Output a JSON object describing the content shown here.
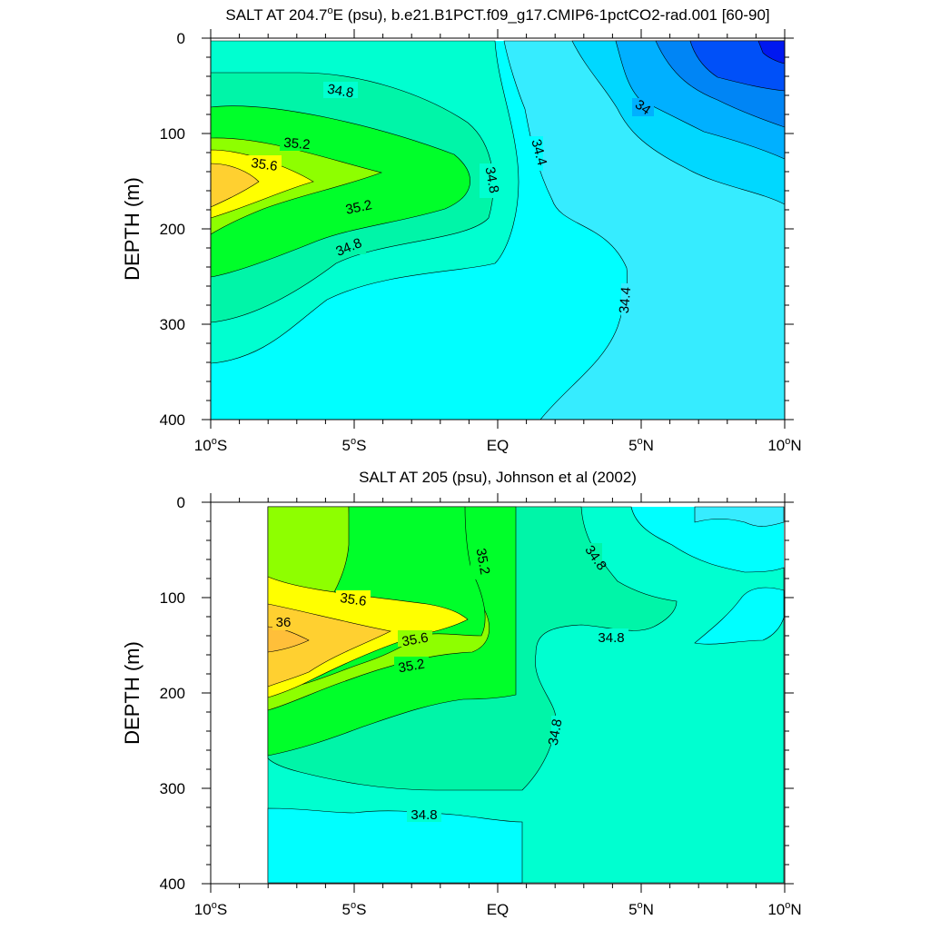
{
  "chart_data": [
    {
      "type": "contour",
      "title": "SALT AT 204.7",
      "title_superscript": "o",
      "title_rest": "E (psu), b.e21.B1PCT.f09_g17.CMIP6-1pctCO2-rad.001 [60-90]",
      "ylabel": "DEPTH (m)",
      "xlim": [
        -10,
        10
      ],
      "ylim": [
        0,
        400
      ],
      "y_inverted": true,
      "x_ticks": [
        {
          "value": -10,
          "num": "10",
          "hem": "S"
        },
        {
          "value": -5,
          "num": "5",
          "hem": "S"
        },
        {
          "value": 0,
          "num": "EQ",
          "hem": ""
        },
        {
          "value": 5,
          "num": "5",
          "hem": "N"
        },
        {
          "value": 10,
          "num": "10",
          "hem": "N"
        }
      ],
      "y_ticks": [
        "0",
        "100",
        "200",
        "300",
        "400"
      ],
      "contour_labels": [
        "34.8",
        "35.2",
        "35.6",
        "35.2",
        "34.8",
        "34.8",
        "34.4",
        "34.4",
        "34"
      ],
      "fill_colors": {
        "33.4": "#0018f0",
        "33.6": "#0050f8",
        "33.8": "#0085f5",
        "34": "#00b0ff",
        "34.2": "#00d8ff",
        "34.4": "#36ecff",
        "34.6": "#00ffff",
        "34.8": "#00ffd0",
        "35": "#00f5a8",
        "35.2": "#00ff2a",
        "35.4": "#8eff00",
        "35.6": "#ffff00",
        "35.8": "#ffd030",
        "36": "#ffbf3a"
      }
    },
    {
      "type": "contour",
      "title": "SALT AT 205 (psu), Johnson et al (2002)",
      "ylabel": "DEPTH (m)",
      "xlim": [
        -10,
        10
      ],
      "ylim": [
        0,
        400
      ],
      "y_inverted": true,
      "data_xrange": [
        -8,
        10
      ],
      "x_ticks": [
        {
          "value": -10,
          "num": "10",
          "hem": "S"
        },
        {
          "value": -5,
          "num": "5",
          "hem": "S"
        },
        {
          "value": 0,
          "num": "EQ",
          "hem": ""
        },
        {
          "value": 5,
          "num": "5",
          "hem": "N"
        },
        {
          "value": 10,
          "num": "10",
          "hem": "N"
        }
      ],
      "y_ticks": [
        "0",
        "100",
        "200",
        "300",
        "400"
      ],
      "contour_labels": [
        "35.2",
        "34.8",
        "35.6",
        "36",
        "35.6",
        "35.2",
        "34.8",
        "34.8",
        "34.8"
      ]
    }
  ]
}
